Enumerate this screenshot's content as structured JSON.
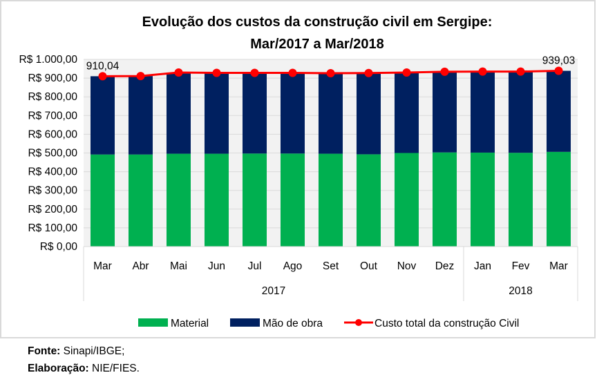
{
  "chart_data": {
    "type": "bar",
    "stacked": true,
    "title": [
      "Evolução  dos custos da construção  civil em Sergipe:",
      "Mar/2017 a Mar/2018"
    ],
    "xlabel": "",
    "ylabel": "",
    "categories": [
      "Mar",
      "Abr",
      "Mai",
      "Jun",
      "Jul",
      "Ago",
      "Set",
      "Out",
      "Nov",
      "Dez",
      "Jan",
      "Fev",
      "Mar"
    ],
    "category_groups": [
      {
        "label": "2017",
        "count": 10
      },
      {
        "label": "2018",
        "count": 3
      }
    ],
    "ylim": [
      0,
      1000
    ],
    "yticks": [
      0,
      100,
      200,
      300,
      400,
      500,
      600,
      700,
      800,
      900,
      1000
    ],
    "ytick_labels": [
      "R$ 0,00",
      "R$ 100,00",
      "R$ 200,00",
      "R$ 300,00",
      "R$ 400,00",
      "R$ 500,00",
      "R$ 600,00",
      "R$ 700,00",
      "R$ 800,00",
      "R$ 900,00",
      "R$ 1.000,00"
    ],
    "grid": true,
    "legend_position": "bottom",
    "series": [
      {
        "name": "Material",
        "kind": "bar",
        "color": "#00b050",
        "values": [
          492,
          492,
          496,
          496,
          497,
          497,
          496,
          493,
          500,
          503,
          502,
          501,
          506
        ]
      },
      {
        "name": "Mão de obra",
        "kind": "bar",
        "color": "#002060",
        "values": [
          418.04,
          419,
          434,
          432,
          431,
          431,
          430,
          434,
          430,
          431,
          433,
          434,
          433.03
        ]
      },
      {
        "name": "Custo total da construção Civil",
        "kind": "line",
        "color": "#ff0000",
        "values": [
          910.04,
          911,
          930,
          928,
          928,
          928,
          926,
          927,
          930,
          934,
          935,
          935,
          939.03
        ]
      }
    ],
    "data_labels": [
      {
        "index": 0,
        "text": "910,04"
      },
      {
        "index": 12,
        "text": "939,03"
      }
    ]
  },
  "footer": {
    "source_label": "Fonte:",
    "source_value": " Sinapi/IBGE;",
    "credit_label": "Elaboração:",
    "credit_value": " NIE/FIES."
  }
}
